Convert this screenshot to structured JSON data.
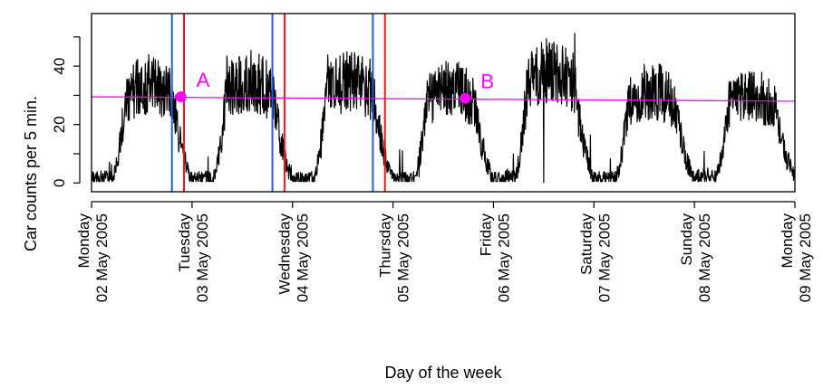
{
  "chart_data": {
    "type": "line",
    "title": "",
    "xlabel": "Day of the week",
    "ylabel": "Car counts per 5 min.",
    "ylim": [
      -3,
      58
    ],
    "yticks": [
      0,
      20,
      40
    ],
    "x_start": "02 May 2005",
    "x_end": "09 May 2005",
    "x_ticks": [
      {
        "day": "Monday",
        "date": "02 May 2005"
      },
      {
        "day": "Tuesday",
        "date": "03 May 2005"
      },
      {
        "day": "Wednesday",
        "date": "04 May 2005"
      },
      {
        "day": "Thursday",
        "date": "05 May 2005"
      },
      {
        "day": "Friday",
        "date": "06 May 2005"
      },
      {
        "day": "Saturday",
        "date": "07 May 2005"
      },
      {
        "day": "Sunday",
        "date": "08 May 2005"
      },
      {
        "day": "Monday",
        "date": "09 May 2005"
      }
    ],
    "series": [
      {
        "color": "#000000",
        "sampling": "5 min",
        "approx_daily_envelope": [
          {
            "day": "02 May 2005",
            "night_min": 1,
            "day_max": 48
          },
          {
            "day": "03 May 2005",
            "night_min": 1,
            "day_max": 50
          },
          {
            "day": "04 May 2005",
            "night_min": 1,
            "day_max": 50
          },
          {
            "day": "05 May 2005",
            "night_min": 1,
            "day_max": 46
          },
          {
            "day": "06 May 2005",
            "night_min": 1,
            "day_max": 55
          },
          {
            "day": "07 May 2005",
            "night_min": 1,
            "day_max": 45
          },
          {
            "day": "08 May 2005",
            "night_min": 2,
            "day_max": 42
          }
        ]
      }
    ],
    "trend_line": {
      "color": "#ff00ff",
      "y_start": 29.5,
      "y_end": 28
    },
    "vertical_lines": [
      {
        "color": "#1f5fd6",
        "day_offset": 0.8
      },
      {
        "color": "#e41a1c",
        "day_offset": 0.92
      },
      {
        "color": "#1f5fd6",
        "day_offset": 1.8
      },
      {
        "color": "#e41a1c",
        "day_offset": 1.92
      },
      {
        "color": "#1f5fd6",
        "day_offset": 2.8
      },
      {
        "color": "#e41a1c",
        "day_offset": 2.92
      }
    ],
    "points": [
      {
        "label": "A",
        "day_offset": 0.89,
        "y": 29.5,
        "color": "#ff00ff"
      },
      {
        "label": "B",
        "day_offset": 3.72,
        "y": 29,
        "color": "#ff00ff"
      }
    ],
    "grid": false,
    "legend": "none"
  }
}
